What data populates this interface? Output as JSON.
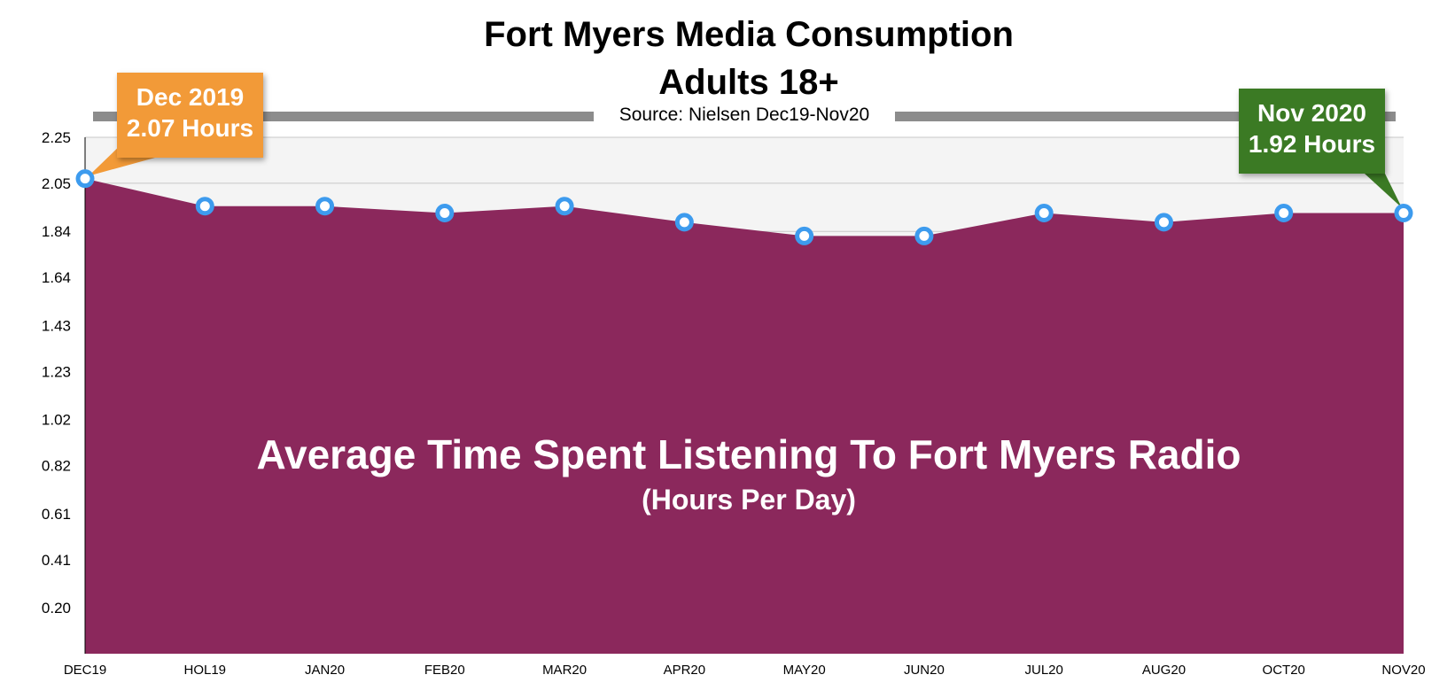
{
  "chart_data": {
    "type": "area",
    "title": "Fort Myers Media Consumption",
    "subtitle": "Adults 18+",
    "source": "Source: Nielsen Dec19-Nov20",
    "categories": [
      "DEC19",
      "HOL19",
      "JAN20",
      "FEB20",
      "MAR20",
      "APR20",
      "MAY20",
      "JUN20",
      "JUL20",
      "AUG20",
      "OCT20",
      "NOV20"
    ],
    "series": [
      {
        "values": [
          2.07,
          1.95,
          1.95,
          1.92,
          1.95,
          1.88,
          1.82,
          1.82,
          1.92,
          1.88,
          1.92,
          1.92
        ]
      }
    ],
    "y_ticks": [
      "0.20",
      "0.41",
      "0.61",
      "0.82",
      "1.02",
      "1.23",
      "1.43",
      "1.64",
      "1.84",
      "2.05",
      "2.25"
    ],
    "ylim": [
      0,
      2.25
    ],
    "annotations": {
      "start": {
        "line1": "Dec 2019",
        "line2": "2.07 Hours"
      },
      "end": {
        "line1": "Nov 2020",
        "line2": "1.92 Hours"
      }
    },
    "inner_label": "Average Time Spent Listening To Fort Myers Radio",
    "inner_sublabel": "(Hours Per Day)",
    "colors": {
      "area": "#8b285c",
      "marker": "#3d9bee",
      "plot_background": "#f4f4f4",
      "start_callout": "#f29a38",
      "end_callout": "#3b7a24"
    },
    "grid": true
  }
}
